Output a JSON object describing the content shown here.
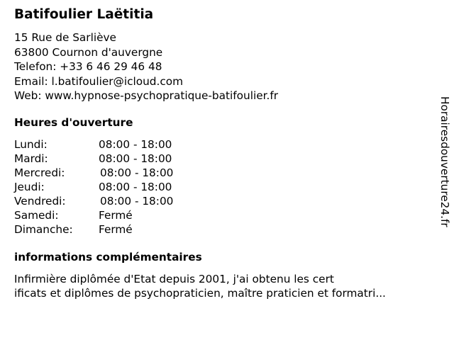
{
  "name": "Batifoulier Laëtitia",
  "address": {
    "street": "15 Rue de Sarliève",
    "city": "63800 Cournon d'auvergne",
    "phone": "Telefon: +33 6 46 29 46 48",
    "email": "Email: l.batifoulier@icloud.com",
    "web": "Web: www.hypnose-psychopratique-batifoulier.fr"
  },
  "hours": {
    "heading": "Heures d'ouverture",
    "days": [
      {
        "day": "Lundi:",
        "time": "08:00 - 18:00"
      },
      {
        "day": "Mardi:",
        "time": "08:00 - 18:00"
      },
      {
        "day": "Mercredi:",
        "time": "08:00 - 18:00"
      },
      {
        "day": "Jeudi:",
        "time": "08:00 - 18:00"
      },
      {
        "day": "Vendredi:",
        "time": "08:00 - 18:00"
      },
      {
        "day": "Samedi:",
        "time": "Fermé"
      },
      {
        "day": "Dimanche:",
        "time": "Fermé"
      }
    ]
  },
  "info": {
    "heading": "informations complémentaires",
    "line1": "Infirmière diplômée d'Etat depuis 2001, j'ai obtenu les cert",
    "line2": "ificats et diplômes de psychopraticien, maître praticien et formatri..."
  },
  "watermark": "Horairesdouverture24.fr"
}
